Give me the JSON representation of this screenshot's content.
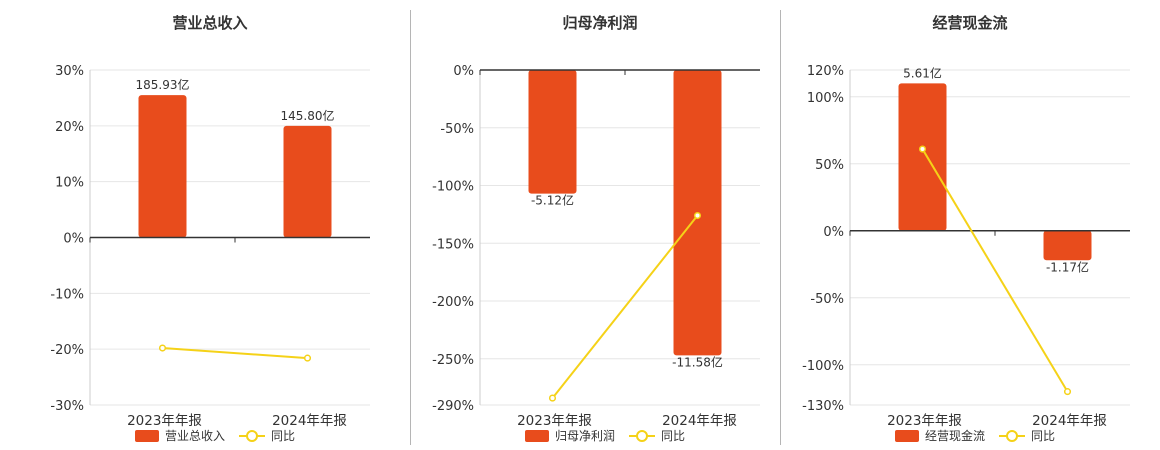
{
  "colors": {
    "bar": "#e84c1c",
    "yoy_line": "#f5d218",
    "grid": "#e6e6e6",
    "axis": "#333333",
    "text": "#333333"
  },
  "chart_data": [
    {
      "type": "bar",
      "title": "营业总收入",
      "categories": [
        "2023年年报",
        "2024年年报"
      ],
      "ylim": [
        -30,
        30
      ],
      "yticks": [
        30,
        20,
        10,
        0,
        -10,
        -20,
        -30
      ],
      "tick_labels": [
        "30%",
        "20%",
        "10%",
        "0%",
        "-10%",
        "-20%",
        "-30%"
      ],
      "bar_values": [
        25.5,
        20
      ],
      "bar_labels": [
        "185.93亿",
        "145.80亿"
      ],
      "line_values": [
        -19.8,
        -21.6
      ],
      "grid": true,
      "legend_position": "bottom",
      "series": [
        {
          "name": "营业总收入",
          "kind": "bar"
        },
        {
          "name": "同比",
          "kind": "line"
        }
      ]
    },
    {
      "type": "bar",
      "title": "归母净利润",
      "categories": [
        "2023年年报",
        "2024年年报"
      ],
      "ylim": [
        -290,
        0
      ],
      "yticks": [
        0,
        -50,
        -100,
        -150,
        -200,
        -250,
        -290
      ],
      "tick_labels": [
        "0%",
        "-50%",
        "-100%",
        "-150%",
        "-200%",
        "-250%",
        "-290%"
      ],
      "bar_values": [
        -107,
        -247
      ],
      "bar_labels": [
        "-5.12亿",
        "-11.58亿"
      ],
      "line_values": [
        -284,
        -126
      ],
      "grid": true,
      "legend_position": "bottom",
      "series": [
        {
          "name": "归母净利润",
          "kind": "bar"
        },
        {
          "name": "同比",
          "kind": "line"
        }
      ]
    },
    {
      "type": "bar",
      "title": "经营现金流",
      "categories": [
        "2023年年报",
        "2024年年报"
      ],
      "ylim": [
        -130,
        120
      ],
      "yticks": [
        120,
        100,
        50,
        0,
        -50,
        -100,
        -130
      ],
      "tick_labels": [
        "120%",
        "100%",
        "50%",
        "0%",
        "-50%",
        "-100%",
        "-130%"
      ],
      "bar_values": [
        110,
        -22
      ],
      "bar_labels": [
        "5.61亿",
        "-1.17亿"
      ],
      "line_values": [
        61,
        -120
      ],
      "grid": true,
      "legend_position": "bottom",
      "series": [
        {
          "name": "经营现金流",
          "kind": "bar"
        },
        {
          "name": "同比",
          "kind": "line"
        }
      ]
    }
  ]
}
